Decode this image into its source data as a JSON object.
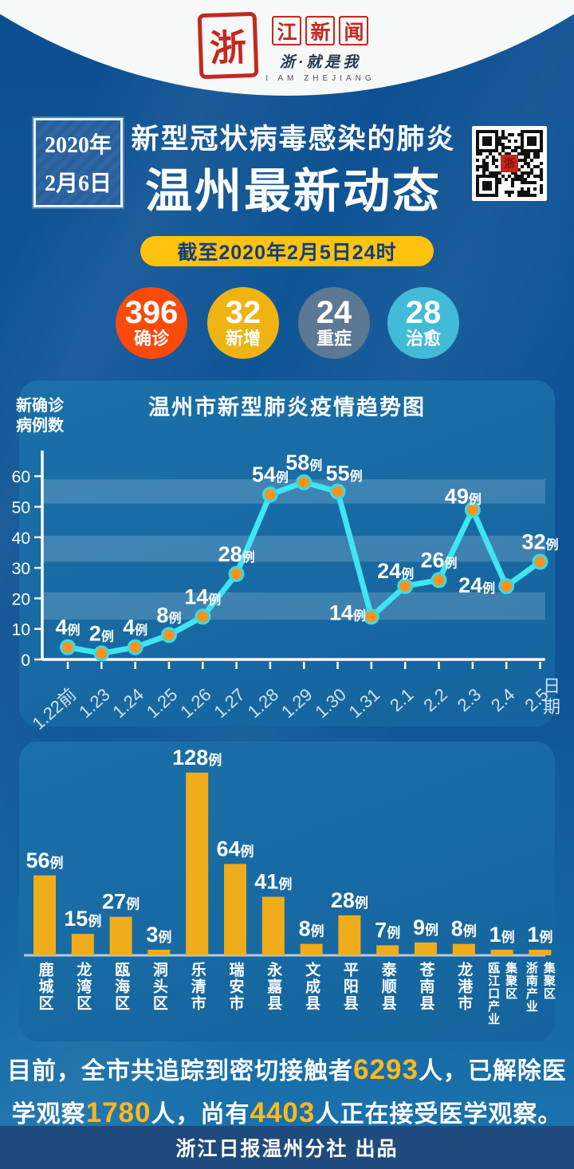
{
  "header": {
    "logo_seal": "浙",
    "logo_boxed": [
      "江",
      "新",
      "闻"
    ],
    "tagline": "浙·就是我",
    "tagline_en": "I AM ZHEJIANG"
  },
  "masthead": {
    "date_line1": "2020年",
    "date_line2": "2月6日",
    "title_line1": "新型冠状病毒感染的肺炎",
    "title_line2": "温州最新动态",
    "qr_label": "浙"
  },
  "asof_pill": "截至2020年2月5日24时",
  "stats": [
    {
      "value": "396",
      "label": "确诊",
      "color": "#FA4A0C"
    },
    {
      "value": "32",
      "label": "新增",
      "color": "#EFB411"
    },
    {
      "value": "24",
      "label": "重症",
      "color": "#5C7893"
    },
    {
      "value": "28",
      "label": "治愈",
      "color": "#41BBD8"
    }
  ],
  "chart_data": [
    {
      "type": "line",
      "title": "温州市新型肺炎疫情趋势图",
      "ylabel": "新确诊病例数",
      "ylabel_lines": [
        "新确诊",
        "病例数"
      ],
      "xlabel": "日期",
      "categories": [
        "1.22前",
        "1.23",
        "1.24",
        "1.25",
        "1.26",
        "1.27",
        "1.28",
        "1.29",
        "1.30",
        "1.31",
        "2.1",
        "2.2",
        "2.3",
        "2.4",
        "2.5"
      ],
      "values": [
        4,
        2,
        4,
        8,
        14,
        28,
        54,
        58,
        55,
        14,
        24,
        26,
        49,
        24,
        32
      ],
      "unit_suffix": "例",
      "yticks": [
        0,
        10,
        20,
        30,
        40,
        50,
        60
      ],
      "ylim": [
        0,
        65
      ],
      "grid": "alternating-bands",
      "bands": [
        [
          51,
          59
        ],
        [
          32,
          40.5
        ],
        [
          13,
          22
        ]
      ],
      "line_color": "#3FE5F2",
      "point_color": "#F6931D",
      "label_offsets": {
        "8": [
          8,
          -14
        ],
        "9": [
          -30,
          4
        ],
        "10": [
          -12,
          -10
        ],
        "12": [
          -12,
          -8
        ],
        "13": [
          -37,
          8
        ]
      }
    },
    {
      "type": "bar",
      "categories": [
        "鹿城区",
        "龙湾区",
        "瓯海区",
        "洞头区",
        "乐清市",
        "瑞安市",
        "永嘉县",
        "文成县",
        "平阳县",
        "泰顺县",
        "苍南县",
        "龙港市",
        "瓯江口产业|集聚区",
        "浙南产业|集聚区"
      ],
      "values": [
        56,
        15,
        27,
        3,
        128,
        64,
        41,
        8,
        28,
        7,
        9,
        8,
        1,
        1
      ],
      "unit_suffix": "例",
      "bar_color": "#F0AD1B",
      "baseline_color": "#B9C8D8"
    }
  ],
  "summary": {
    "lines": [
      [
        {
          "text": "目前，全市共追踪到密切接触者"
        },
        {
          "text": "6293",
          "highlight": true
        },
        {
          "text": "人，已解除医"
        }
      ],
      [
        {
          "text": "学观察"
        },
        {
          "text": "1780",
          "highlight": true
        },
        {
          "text": "人，尚有"
        },
        {
          "text": "4403",
          "highlight": true
        },
        {
          "text": "人正在接受医学观察。"
        }
      ]
    ]
  },
  "footer": {
    "credit": "浙江日报温州分社 出品"
  },
  "colors": {
    "accent_yellow": "#FFC20E",
    "highlight_number": "#FFB91D",
    "footer_navy": "#1F4A7C",
    "seal_red": "#C3291F"
  }
}
